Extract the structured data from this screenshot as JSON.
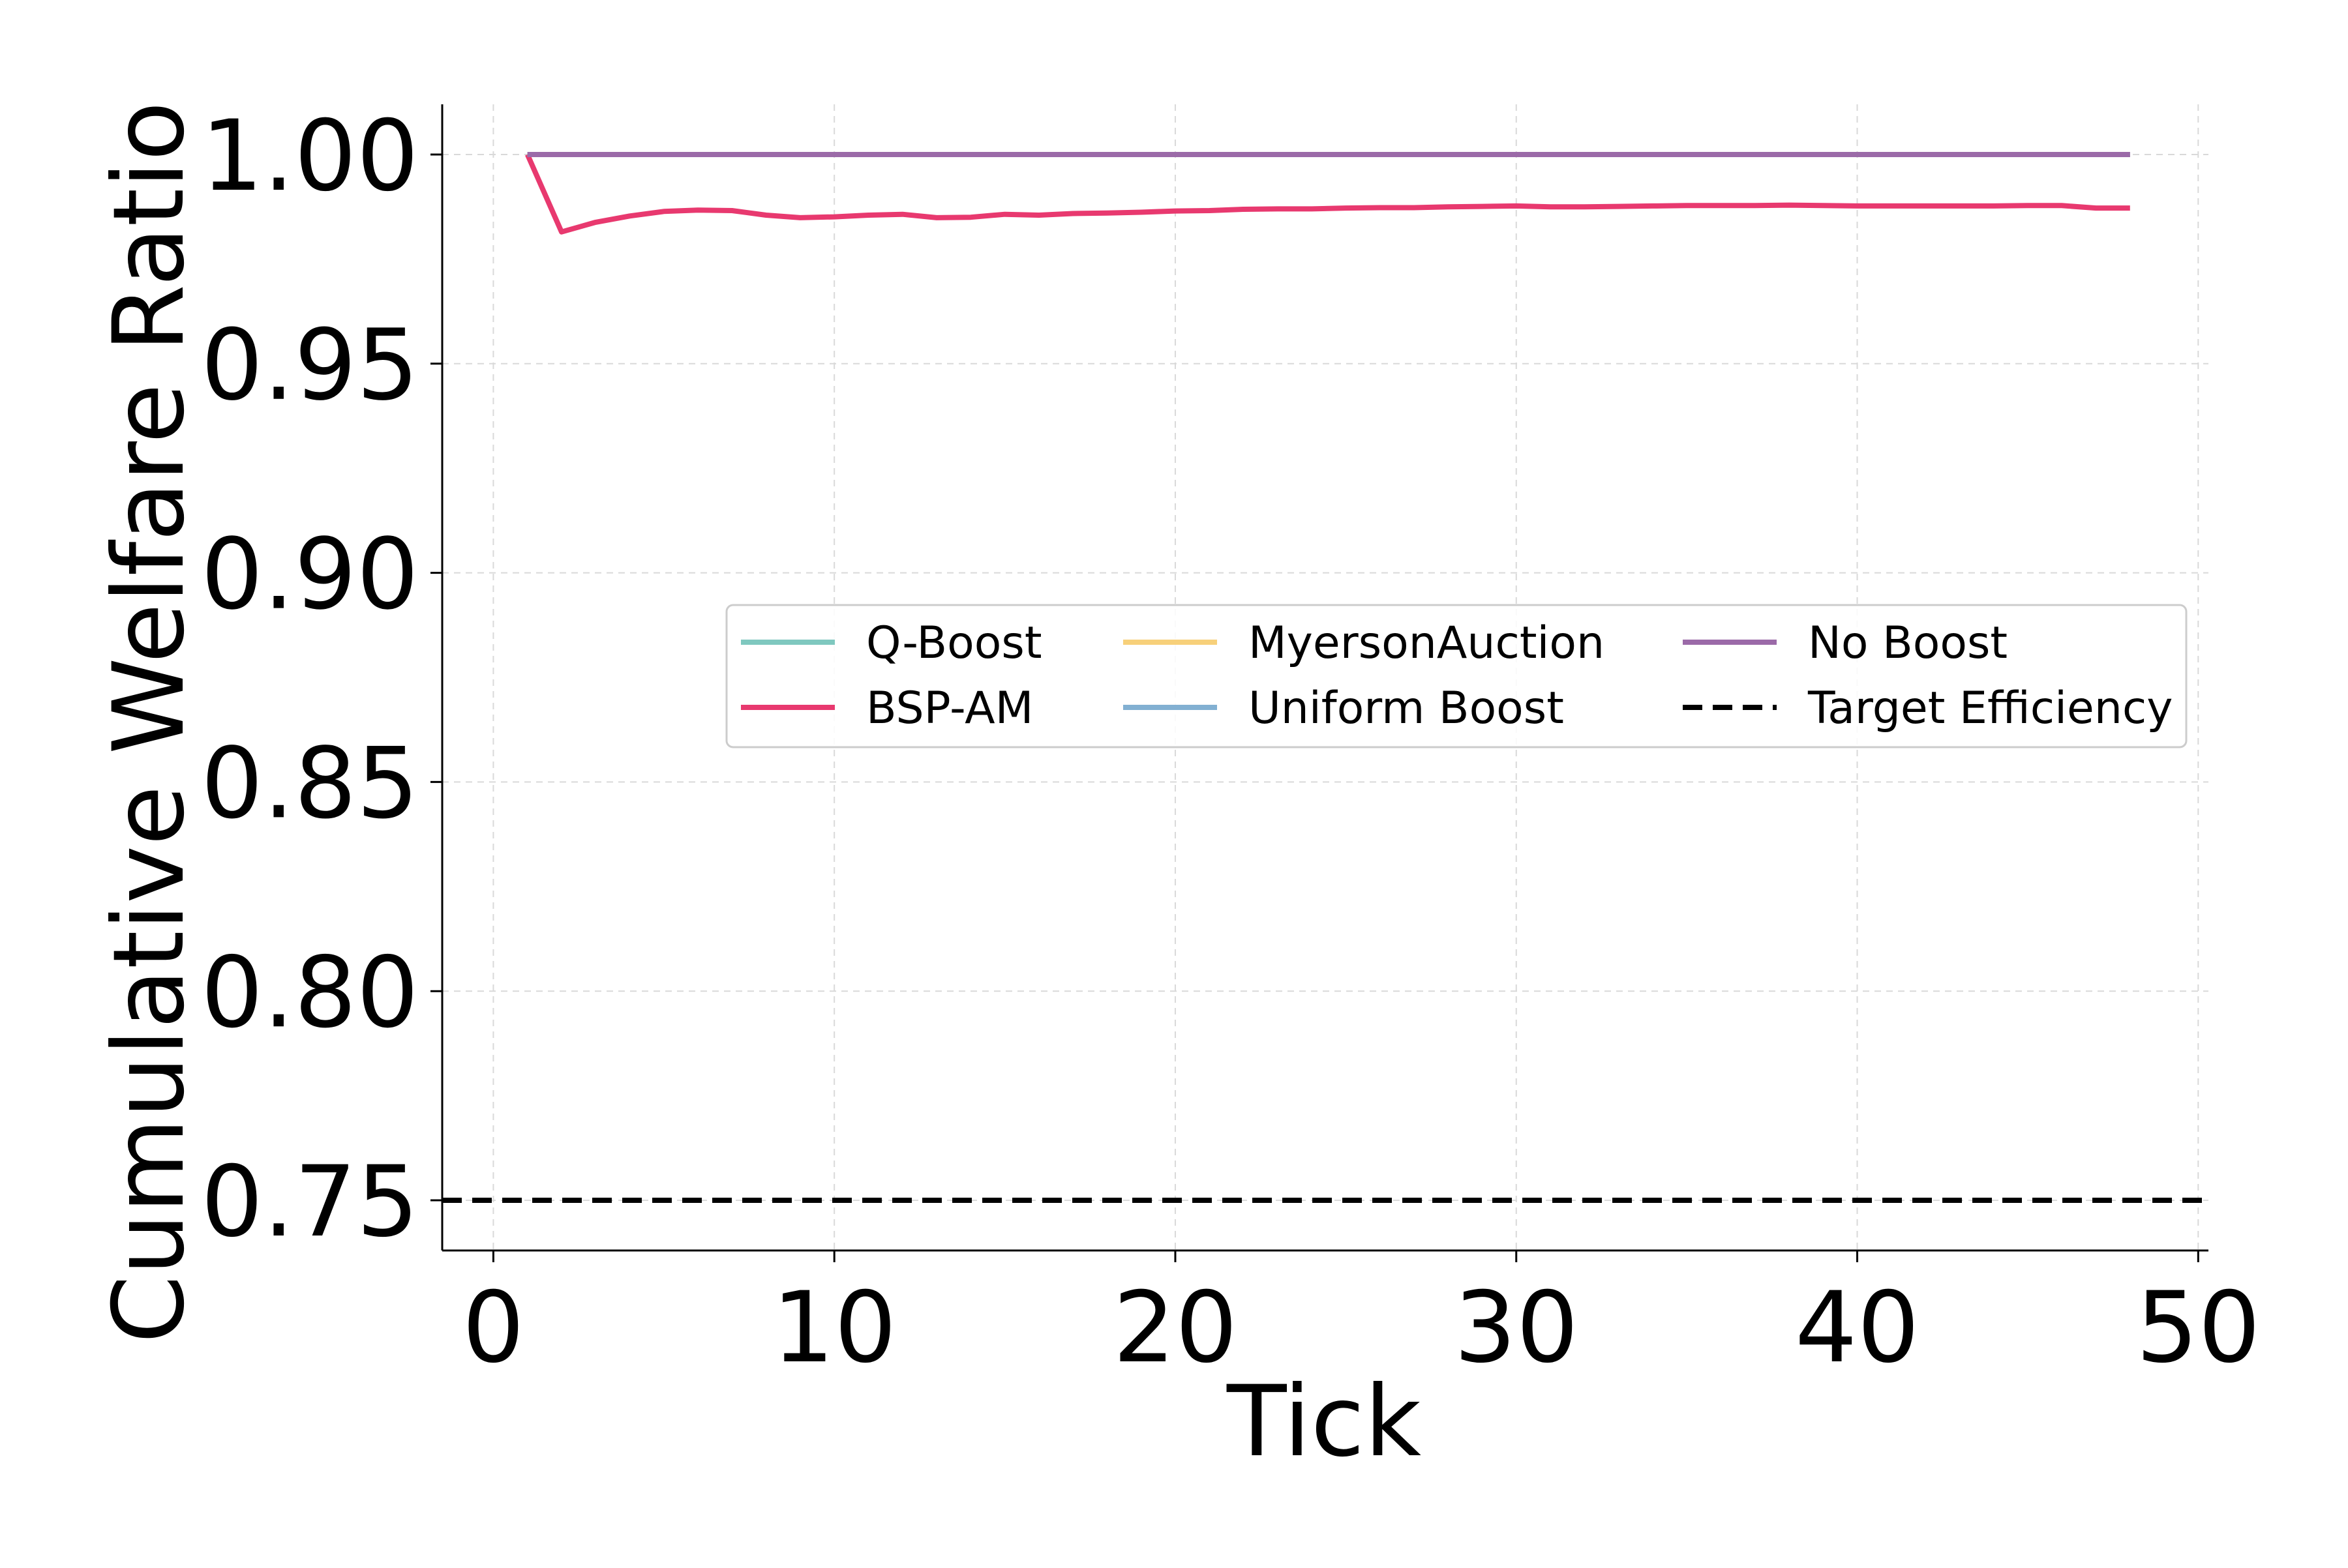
{
  "chart_data": {
    "type": "line",
    "title": "",
    "xlabel": "Tick",
    "ylabel": "Cumulative Welfare Ratio",
    "xlim": [
      -1.5,
      50.3
    ],
    "ylim": [
      0.738,
      1.012
    ],
    "xticks": [
      0,
      10,
      20,
      30,
      40,
      50
    ],
    "yticks": [
      0.75,
      0.8,
      0.85,
      0.9,
      0.95,
      1.0
    ],
    "xtick_labels": [
      "0",
      "10",
      "20",
      "30",
      "40",
      "50"
    ],
    "ytick_labels": [
      "0.75",
      "0.80",
      "0.85",
      "0.90",
      "0.95",
      "1.00"
    ],
    "grid": true,
    "legend_position": "center-right",
    "legend_columns": 3,
    "series": [
      {
        "name": "Q-Boost",
        "color": "#7fc8bf",
        "style": "solid",
        "x": [
          1,
          48
        ],
        "y": [
          1.0,
          1.0
        ]
      },
      {
        "name": "BSP-AM",
        "color": "#e8396f",
        "style": "solid",
        "x": [
          1,
          2,
          3,
          4,
          5,
          6,
          7,
          8,
          9,
          10,
          11,
          12,
          13,
          14,
          15,
          16,
          17,
          18,
          19,
          20,
          21,
          22,
          23,
          24,
          25,
          26,
          27,
          28,
          29,
          30,
          31,
          32,
          33,
          34,
          35,
          36,
          37,
          38,
          39,
          40,
          41,
          42,
          43,
          44,
          45,
          46,
          47,
          48
        ],
        "y": [
          1.0,
          0.9815,
          0.9838,
          0.9853,
          0.9864,
          0.9867,
          0.9866,
          0.9855,
          0.9849,
          0.9851,
          0.9855,
          0.9857,
          0.9849,
          0.985,
          0.9857,
          0.9855,
          0.9859,
          0.986,
          0.9862,
          0.9865,
          0.9866,
          0.9869,
          0.987,
          0.987,
          0.9872,
          0.9873,
          0.9873,
          0.9875,
          0.9876,
          0.9877,
          0.9875,
          0.9875,
          0.9876,
          0.9877,
          0.9878,
          0.9878,
          0.9878,
          0.9879,
          0.9878,
          0.9877,
          0.9877,
          0.9877,
          0.9877,
          0.9877,
          0.9878,
          0.9878,
          0.9872,
          0.9872
        ]
      },
      {
        "name": "MyersonAuction",
        "color": "#f7d07a",
        "style": "solid",
        "x": [
          1,
          48
        ],
        "y": [
          1.0,
          1.0
        ]
      },
      {
        "name": "Uniform Boost",
        "color": "#82b0d2",
        "style": "solid",
        "x": [
          1,
          48
        ],
        "y": [
          1.0,
          1.0
        ]
      },
      {
        "name": "No Boost",
        "color": "#9b6aa8",
        "style": "solid",
        "x": [
          1,
          48
        ],
        "y": [
          1.0,
          1.0
        ]
      },
      {
        "name": "Target Efficiency",
        "color": "#000000",
        "style": "dashed",
        "x": [
          -1.5,
          50.3
        ],
        "y": [
          0.75,
          0.75
        ]
      }
    ]
  }
}
